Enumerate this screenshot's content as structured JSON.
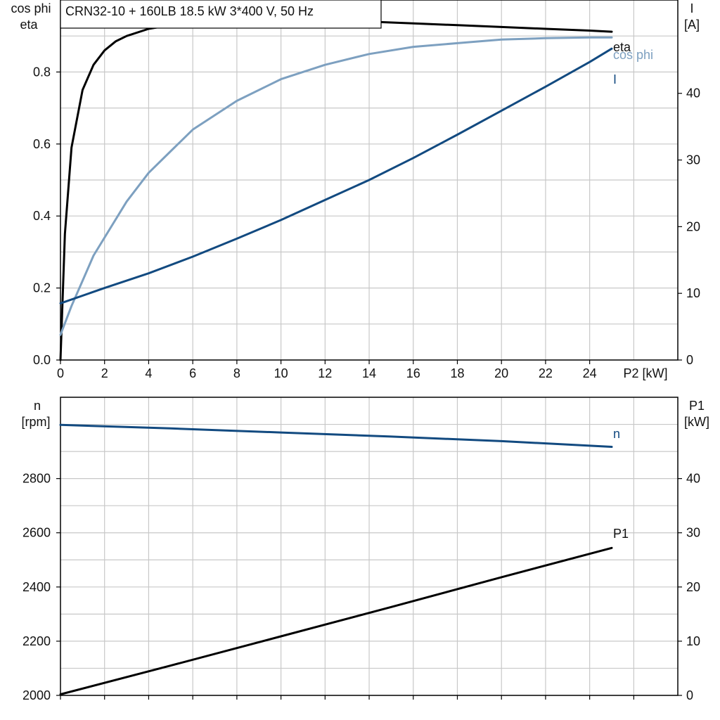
{
  "title": "CRN32-10 + 160LB   18.5 kW   3*400 V, 50 Hz",
  "colors": {
    "eta": "#000000",
    "cos_phi": "#7da0c0",
    "current": "#124a80",
    "speed": "#124a80",
    "p1": "#000000",
    "grid": "#c8c8c8"
  },
  "chart_data": [
    {
      "type": "line",
      "title": "CRN32-10 + 160LB   18.5 kW   3*400 V, 50 Hz",
      "xlabel": "P2 [kW]",
      "ylabel_left": [
        "cos phi",
        "eta"
      ],
      "ylabel_right": [
        "I",
        "[A]"
      ],
      "xlim": [
        0,
        28
      ],
      "ylim_left": [
        0,
        1.0
      ],
      "ylim_right": [
        0,
        54
      ],
      "x_ticks": [
        "0",
        "2",
        "4",
        "6",
        "8",
        "10",
        "12",
        "14",
        "16",
        "18",
        "20",
        "22",
        "24"
      ],
      "y_ticks_left": [
        "0.0",
        "0.2",
        "0.4",
        "0.6",
        "0.8"
      ],
      "y_ticks_right": [
        "0",
        "10",
        "20",
        "30",
        "40"
      ],
      "grid": true,
      "series": [
        {
          "name": "eta",
          "axis": "left",
          "x": [
            0,
            0.2,
            0.5,
            1,
            1.5,
            2,
            2.5,
            3,
            4,
            5,
            6,
            8,
            10,
            12,
            14,
            16,
            18,
            20,
            22,
            24,
            25
          ],
          "y": [
            0.0,
            0.35,
            0.59,
            0.75,
            0.82,
            0.86,
            0.885,
            0.9,
            0.92,
            0.93,
            0.94,
            0.947,
            0.949,
            0.945,
            0.94,
            0.935,
            0.93,
            0.925,
            0.92,
            0.915,
            0.912
          ]
        },
        {
          "name": "cos phi",
          "axis": "left",
          "x": [
            0,
            0.5,
            1,
            1.5,
            2,
            3,
            4,
            5,
            6,
            8,
            10,
            12,
            14,
            16,
            18,
            20,
            22,
            24,
            25
          ],
          "y": [
            0.07,
            0.15,
            0.22,
            0.29,
            0.34,
            0.44,
            0.52,
            0.58,
            0.64,
            0.72,
            0.78,
            0.82,
            0.85,
            0.87,
            0.88,
            0.89,
            0.894,
            0.896,
            0.896
          ]
        },
        {
          "name": "I",
          "axis": "right",
          "x": [
            0,
            2,
            4,
            6,
            8,
            10,
            12,
            14,
            16,
            18,
            20,
            22,
            24,
            25
          ],
          "y": [
            8.5,
            10.8,
            13.0,
            15.5,
            18.2,
            21.0,
            24.0,
            27.0,
            30.3,
            33.8,
            37.4,
            41.0,
            44.7,
            46.7
          ]
        }
      ]
    },
    {
      "type": "line",
      "ylabel_left": [
        "n",
        "[rpm]"
      ],
      "ylabel_right": [
        "P1",
        "[kW]"
      ],
      "xlim": [
        0,
        28
      ],
      "ylim_left": [
        2000,
        3100
      ],
      "ylim_right": [
        0,
        55
      ],
      "y_ticks_left": [
        "2000",
        "2200",
        "2400",
        "2600",
        "2800"
      ],
      "y_ticks_right": [
        "0",
        "10",
        "20",
        "30",
        "40"
      ],
      "grid": true,
      "series": [
        {
          "name": "n",
          "axis": "left",
          "x": [
            0,
            5,
            10,
            15,
            20,
            25
          ],
          "y": [
            2998,
            2985,
            2970,
            2955,
            2938,
            2917
          ]
        },
        {
          "name": "P1",
          "axis": "right",
          "x": [
            0,
            5,
            10,
            15,
            20,
            25
          ],
          "y": [
            0.2,
            5.5,
            10.9,
            16.3,
            21.8,
            27.2
          ]
        }
      ]
    }
  ]
}
